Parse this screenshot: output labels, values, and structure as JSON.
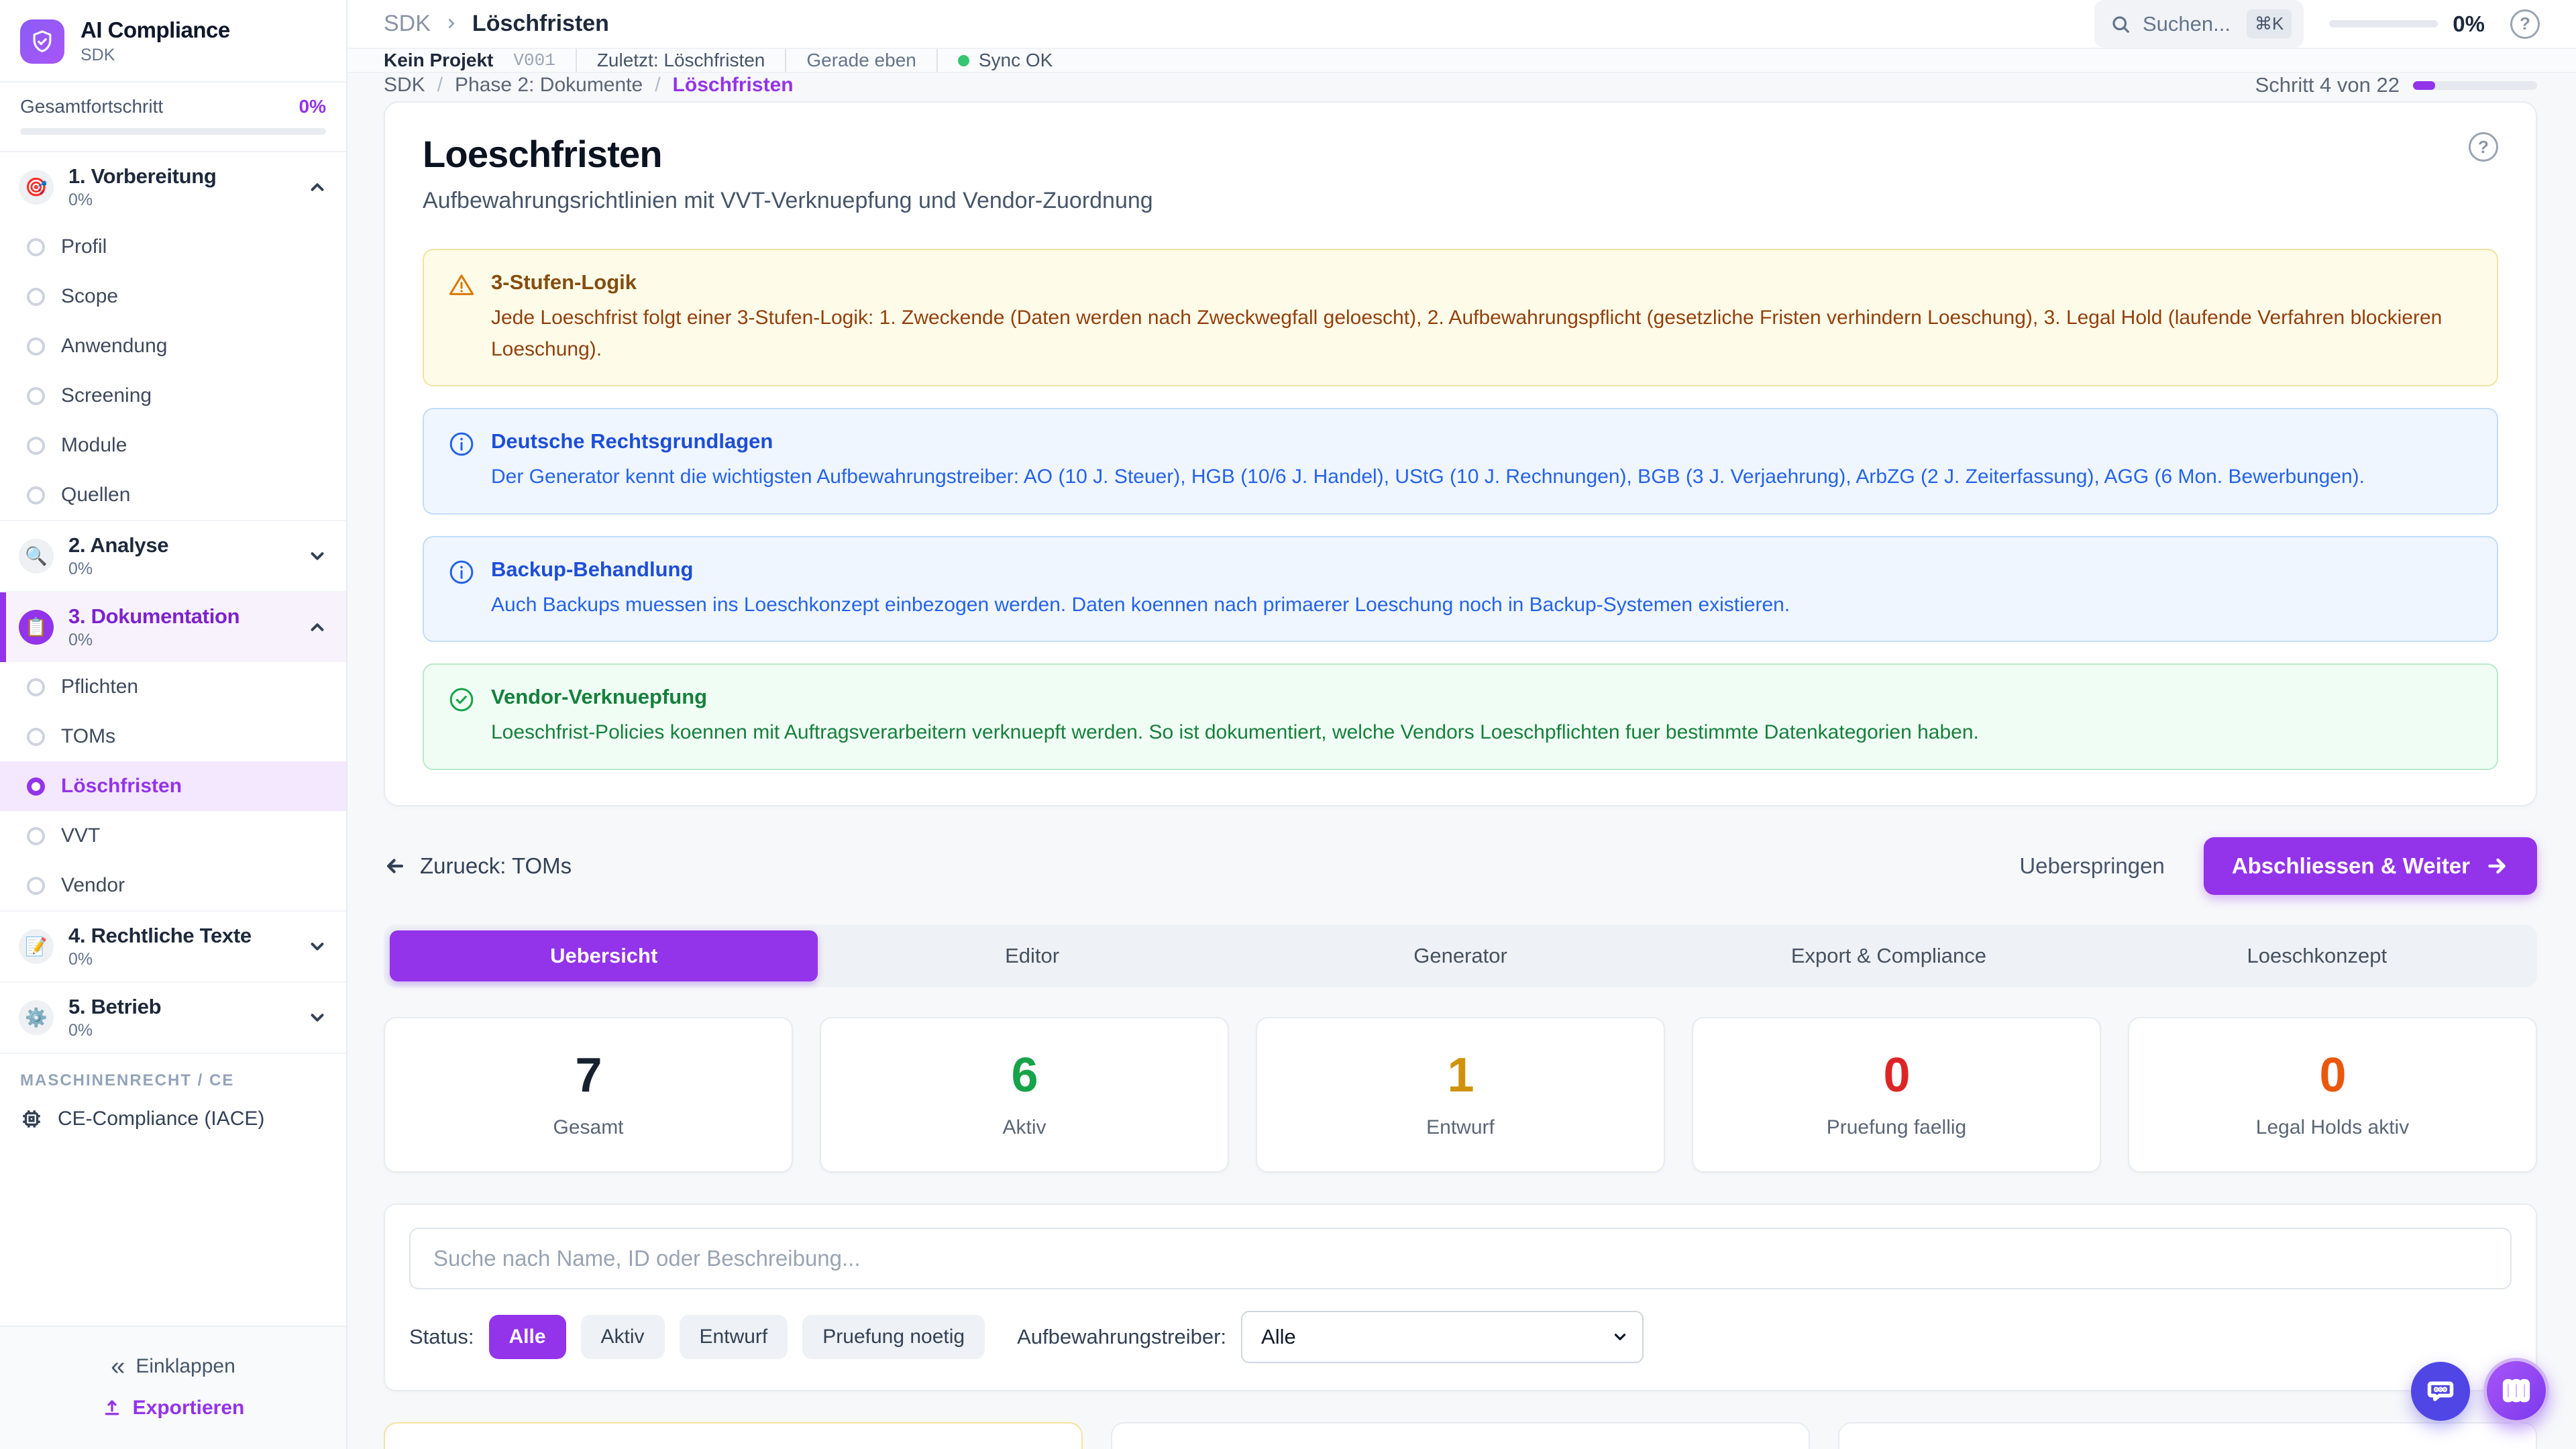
{
  "app": {
    "name": "AI Compliance",
    "subtitle": "SDK"
  },
  "topbar": {
    "breadcrumb_root": "SDK",
    "breadcrumb_current": "Löschfristen",
    "search_placeholder": "Suchen...",
    "search_kbd": "⌘K",
    "progress_pct": 0,
    "progress_label": "0%",
    "help_label": "?"
  },
  "statusbar": {
    "project": "Kein Projekt",
    "version": "V001",
    "last": "Zuletzt: Löschfristen",
    "time": "Gerade eben",
    "sync": "Sync OK"
  },
  "page_breadcrumb": {
    "root": "SDK",
    "parent": "Phase 2: Dokumente",
    "current": "Löschfristen"
  },
  "wizard": {
    "step_label": "Schritt 4 von 22",
    "progress_pct": 18
  },
  "sidebar": {
    "overall_label": "Gesamtfortschritt",
    "overall_value": "0%",
    "overall_pct": 0,
    "phases": [
      {
        "icon": "🎯",
        "label": "1. Vorbereitung",
        "pct": "0%",
        "items": [
          "Profil",
          "Scope",
          "Anwendung",
          "Screening",
          "Module",
          "Quellen"
        ]
      },
      {
        "icon": "🔍",
        "label": "2. Analyse",
        "pct": "0%"
      },
      {
        "icon": "📋",
        "label": "3. Dokumentation",
        "pct": "0%",
        "items": [
          "Pflichten",
          "TOMs",
          "Löschfristen",
          "VVT",
          "Vendor"
        ]
      },
      {
        "icon": "📝",
        "label": "4. Rechtliche Texte",
        "pct": "0%"
      },
      {
        "icon": "⚙️",
        "label": "5. Betrieb",
        "pct": "0%"
      }
    ],
    "section_label": "MASCHINENRECHT / CE",
    "ce_item": "CE-Compliance (IACE)",
    "collapse_label": "Einklappen",
    "collapse_icon": "«",
    "export_label": "Exportieren"
  },
  "main": {
    "title": "Loeschfristen",
    "subtitle": "Aufbewahrungsrichtlinien mit VVT-Verknuepfung und Vendor-Zuordnung",
    "help_label": "?",
    "info_boxes": [
      {
        "type": "warning",
        "title": "3-Stufen-Logik",
        "body": "Jede Loeschfrist folgt einer 3-Stufen-Logik: 1. Zweckende (Daten werden nach Zweckwegfall geloescht), 2. Aufbewahrungspflicht (gesetzliche Fristen verhindern Loeschung), 3. Legal Hold (laufende Verfahren blockieren Loeschung)."
      },
      {
        "type": "info",
        "title": "Deutsche Rechtsgrundlagen",
        "body": "Der Generator kennt die wichtigsten Aufbewahrungstreiber: AO (10 J. Steuer), HGB (10/6 J. Handel), UStG (10 J. Rechnungen), BGB (3 J. Verjaehrung), ArbZG (2 J. Zeiterfassung), AGG (6 Mon. Bewerbungen)."
      },
      {
        "type": "info",
        "title": "Backup-Behandlung",
        "body": "Auch Backups muessen ins Loeschkonzept einbezogen werden. Daten koennen nach primaerer Loeschung noch in Backup-Systemen existieren."
      },
      {
        "type": "success",
        "title": "Vendor-Verknuepfung",
        "body": "Loeschfrist-Policies koennen mit Auftragsverarbeitern verknuepft werden. So ist dokumentiert, welche Vendors Loeschpflichten fuer bestimmte Datenkategorien haben."
      }
    ],
    "back_label": "Zurueck: TOMs",
    "skip_label": "Ueberspringen",
    "next_label": "Abschliessen & Weiter"
  },
  "tabs": [
    {
      "label": "Uebersicht",
      "active": true
    },
    {
      "label": "Editor",
      "active": false
    },
    {
      "label": "Generator",
      "active": false
    },
    {
      "label": "Export & Compliance",
      "active": false
    },
    {
      "label": "Loeschkonzept",
      "active": false
    }
  ],
  "stats": [
    {
      "value": "7",
      "label": "Gesamt",
      "color": "#16202e"
    },
    {
      "value": "6",
      "label": "Aktiv",
      "color": "#16a34a"
    },
    {
      "value": "1",
      "label": "Entwurf",
      "color": "#d0920b"
    },
    {
      "value": "0",
      "label": "Pruefung faellig",
      "color": "#dc2626"
    },
    {
      "value": "0",
      "label": "Legal Holds aktiv",
      "color": "#ea580c"
    }
  ],
  "filters": {
    "search_placeholder": "Suche nach Name, ID oder Beschreibung...",
    "status_label": "Status:",
    "chips": [
      "Alle",
      "Aktiv",
      "Entwurf",
      "Pruefung noetig"
    ],
    "active_chip": "Alle",
    "driver_label": "Aufbewahrungstreiber:",
    "driver_value": "Alle"
  },
  "colors": {
    "accent": "#9333ea",
    "sync_ok": "#34c671",
    "chat_fab": "#4f46e5"
  }
}
